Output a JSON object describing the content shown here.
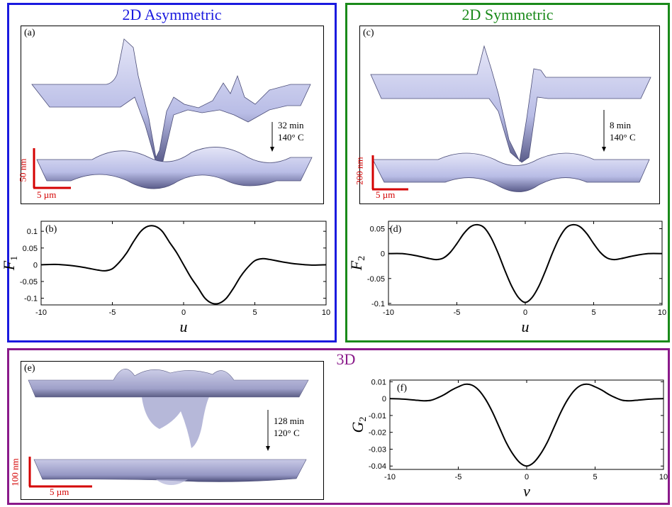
{
  "sections": {
    "asym": {
      "title": "2D Asymmetric",
      "color": "#1a1adf"
    },
    "sym": {
      "title": "2D Symmetric",
      "color": "#1a8a1a"
    },
    "three": {
      "title": "3D",
      "color": "#8a1a8a"
    }
  },
  "panels": {
    "a": {
      "label": "(a)",
      "time": "32 min",
      "temp": "140° C",
      "scale_v": "50 nm",
      "scale_h": "5 µm"
    },
    "b": {
      "label": "(b)"
    },
    "c": {
      "label": "(c)",
      "time": "8 min",
      "temp": "140° C",
      "scale_v": "200 nm",
      "scale_h": "5 µm"
    },
    "d": {
      "label": "(d)"
    },
    "e": {
      "label": "(e)",
      "time": "128 min",
      "temp": "120° C",
      "scale_v": "100 nm",
      "scale_h": "5 µm"
    },
    "f": {
      "label": "(f)"
    }
  },
  "colors": {
    "scale_bar": "#d40000",
    "surface_top": "#e4e5f7",
    "surface_mid": "#b9bde6",
    "surface_dark": "#4b4d78"
  },
  "chart_data": [
    {
      "id": "b",
      "type": "line",
      "xlabel": "u",
      "ylabel": "F1",
      "xlim": [
        -10,
        10
      ],
      "ylim": [
        -0.12,
        0.13
      ],
      "xticks": [
        -10,
        -5,
        0,
        5,
        10
      ],
      "xtick_labels": [
        "-10",
        "-5",
        "0",
        "5",
        "10"
      ],
      "yticks": [
        0.1,
        0.05,
        0,
        -0.05,
        -0.1
      ],
      "ytick_labels": [
        "0.1",
        "0.05",
        "0",
        "-0.05",
        "-0.1"
      ],
      "x": [
        -10,
        -9,
        -8,
        -7,
        -6,
        -5.5,
        -5,
        -4.5,
        -4,
        -3.5,
        -3,
        -2.5,
        -2,
        -1.5,
        -1,
        -0.5,
        0,
        0.5,
        1,
        1.5,
        2,
        2.5,
        3,
        3.5,
        4,
        4.5,
        5,
        5.5,
        6,
        7,
        8,
        9,
        10
      ],
      "y": [
        0,
        0.001,
        -0.002,
        -0.008,
        -0.016,
        -0.018,
        -0.012,
        0.008,
        0.035,
        0.07,
        0.1,
        0.115,
        0.115,
        0.1,
        0.068,
        0.037,
        0,
        -0.037,
        -0.068,
        -0.1,
        -0.115,
        -0.115,
        -0.1,
        -0.07,
        -0.035,
        -0.008,
        0.012,
        0.018,
        0.016,
        0.008,
        0.002,
        -0.001,
        0
      ]
    },
    {
      "id": "d",
      "type": "line",
      "xlabel": "u",
      "ylabel": "F2",
      "xlim": [
        -10,
        10
      ],
      "ylim": [
        -0.103,
        0.065
      ],
      "xticks": [
        -10,
        -5,
        0,
        5,
        10
      ],
      "xtick_labels": [
        "-10",
        "-5",
        "0",
        "5",
        "10"
      ],
      "yticks": [
        0.05,
        0,
        -0.05,
        -0.1
      ],
      "ytick_labels": [
        "0.05",
        "0",
        "-0.05",
        "-0.1"
      ],
      "x": [
        -10,
        -9,
        -8,
        -7,
        -6.5,
        -6,
        -5.5,
        -5,
        -4.5,
        -4,
        -3.5,
        -3,
        -2.5,
        -2,
        -1.5,
        -1,
        -0.5,
        0,
        0.5,
        1,
        1.5,
        2,
        2.5,
        3,
        3.5,
        4,
        4.5,
        5,
        5.5,
        6,
        6.5,
        7,
        8,
        9,
        10
      ],
      "y": [
        0,
        0,
        -0.004,
        -0.01,
        -0.012,
        -0.009,
        0.002,
        0.02,
        0.04,
        0.054,
        0.058,
        0.052,
        0.032,
        0.002,
        -0.033,
        -0.065,
        -0.088,
        -0.098,
        -0.088,
        -0.065,
        -0.033,
        0.002,
        0.032,
        0.052,
        0.058,
        0.054,
        0.04,
        0.02,
        0.002,
        -0.009,
        -0.012,
        -0.01,
        -0.004,
        0,
        0
      ]
    },
    {
      "id": "f",
      "type": "line",
      "xlabel": "v",
      "ylabel": "G2",
      "xlim": [
        -10,
        10
      ],
      "ylim": [
        -0.042,
        0.011
      ],
      "xticks": [
        -10,
        -5,
        0,
        5,
        10
      ],
      "xtick_labels": [
        "-10",
        "-5",
        "0",
        "5",
        "10"
      ],
      "yticks": [
        0.01,
        0,
        -0.01,
        -0.02,
        -0.03,
        -0.04
      ],
      "ytick_labels": [
        "0.01",
        "0",
        "-0.01",
        "-0.02",
        "-0.03",
        "-0.04"
      ],
      "x": [
        -10,
        -9,
        -8,
        -7.5,
        -7,
        -6.5,
        -6,
        -5.5,
        -5,
        -4.5,
        -4,
        -3.5,
        -3,
        -2.5,
        -2,
        -1.5,
        -1,
        -0.5,
        0,
        0.5,
        1,
        1.5,
        2,
        2.5,
        3,
        3.5,
        4,
        4.5,
        5,
        5.5,
        6,
        6.5,
        7,
        7.5,
        8,
        9,
        10
      ],
      "y": [
        0,
        -0.0003,
        -0.001,
        -0.0013,
        -0.001,
        0.0005,
        0.0025,
        0.005,
        0.007,
        0.0085,
        0.008,
        0.005,
        -0.0005,
        -0.008,
        -0.017,
        -0.026,
        -0.033,
        -0.038,
        -0.04,
        -0.038,
        -0.033,
        -0.026,
        -0.017,
        -0.008,
        -0.0005,
        0.005,
        0.008,
        0.0085,
        0.007,
        0.005,
        0.0025,
        0.0005,
        -0.001,
        -0.0013,
        -0.001,
        -0.0003,
        0
      ]
    }
  ]
}
